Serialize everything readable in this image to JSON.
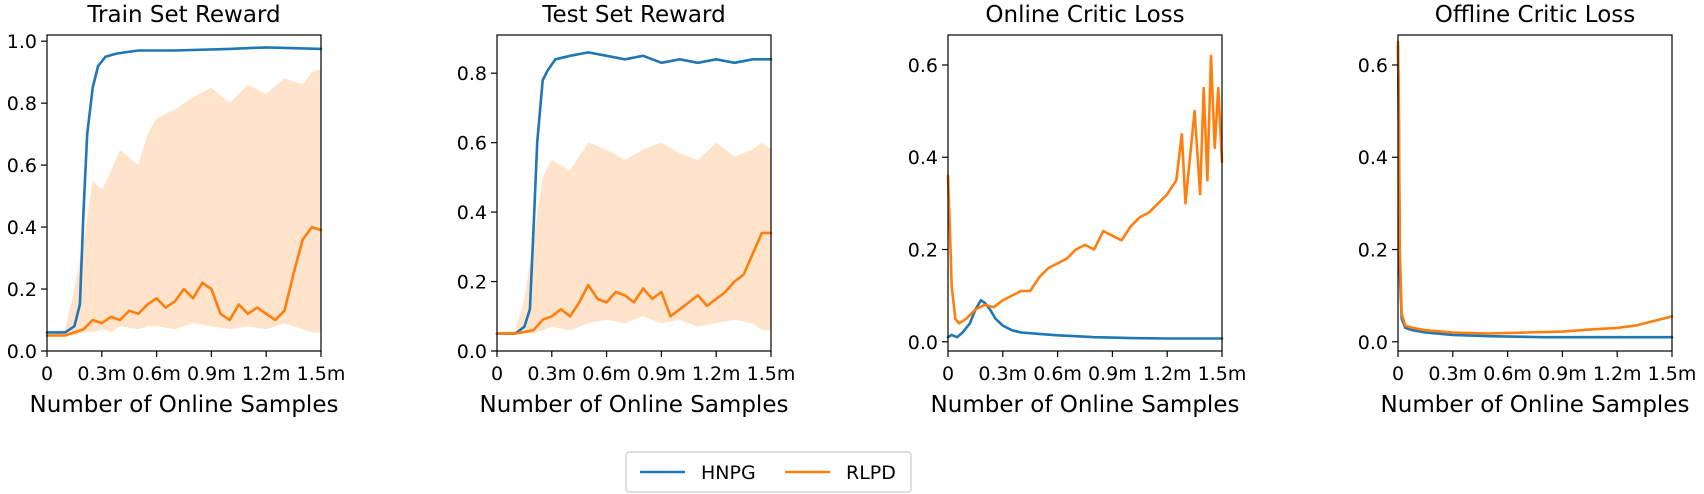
{
  "legend": {
    "items": [
      {
        "name": "HNPG",
        "color": "#1f77b4"
      },
      {
        "name": "RLPD",
        "color": "#ff7f0e"
      }
    ],
    "placement": "bottom-center"
  },
  "chart_data": [
    {
      "type": "line",
      "title": "Train Set Reward",
      "xlabel": "Number of Online Samples",
      "ylabel": "",
      "xlim": [
        0,
        1.5
      ],
      "ylim": [
        0,
        1.02
      ],
      "xticks": [
        0,
        0.3,
        0.6,
        0.9,
        1.2,
        1.5
      ],
      "xtick_labels": [
        "0",
        "0.3m",
        "0.6m",
        "0.9m",
        "1.2m",
        "1.5m"
      ],
      "yticks": [
        0,
        0.2,
        0.4,
        0.6,
        0.8,
        1.0
      ],
      "ytick_labels": [
        "0.0",
        "0.2",
        "0.4",
        "0.6",
        "0.8",
        "1.0"
      ],
      "grid": false,
      "series": [
        {
          "name": "HNPG",
          "color": "#1f77b4",
          "x": [
            0,
            0.1,
            0.15,
            0.18,
            0.2,
            0.22,
            0.25,
            0.28,
            0.32,
            0.38,
            0.5,
            0.7,
            1.0,
            1.2,
            1.5
          ],
          "y": [
            0.06,
            0.06,
            0.08,
            0.15,
            0.45,
            0.7,
            0.85,
            0.92,
            0.95,
            0.96,
            0.97,
            0.97,
            0.975,
            0.98,
            0.975
          ]
        },
        {
          "name": "RLPD",
          "color": "#ff7f0e",
          "x": [
            0,
            0.1,
            0.2,
            0.25,
            0.3,
            0.35,
            0.4,
            0.45,
            0.5,
            0.55,
            0.6,
            0.65,
            0.7,
            0.75,
            0.8,
            0.85,
            0.9,
            0.95,
            1.0,
            1.05,
            1.1,
            1.15,
            1.2,
            1.25,
            1.3,
            1.35,
            1.4,
            1.45,
            1.5
          ],
          "y": [
            0.05,
            0.05,
            0.07,
            0.1,
            0.09,
            0.11,
            0.1,
            0.13,
            0.12,
            0.15,
            0.17,
            0.14,
            0.16,
            0.2,
            0.17,
            0.22,
            0.2,
            0.12,
            0.1,
            0.15,
            0.12,
            0.14,
            0.12,
            0.1,
            0.13,
            0.25,
            0.36,
            0.4,
            0.39
          ]
        }
      ],
      "bands": [
        {
          "series": "RLPD",
          "color": "#ff7f0e",
          "x": [
            0,
            0.1,
            0.15,
            0.2,
            0.25,
            0.3,
            0.35,
            0.4,
            0.5,
            0.55,
            0.6,
            0.7,
            0.8,
            0.9,
            1.0,
            1.1,
            1.2,
            1.3,
            1.4,
            1.45,
            1.5
          ],
          "upper": [
            0.06,
            0.07,
            0.2,
            0.35,
            0.55,
            0.52,
            0.58,
            0.65,
            0.6,
            0.7,
            0.75,
            0.78,
            0.82,
            0.85,
            0.8,
            0.86,
            0.83,
            0.88,
            0.86,
            0.9,
            0.91
          ],
          "lower": [
            0.05,
            0.05,
            0.05,
            0.06,
            0.06,
            0.07,
            0.06,
            0.08,
            0.07,
            0.08,
            0.08,
            0.07,
            0.09,
            0.08,
            0.07,
            0.08,
            0.07,
            0.09,
            0.07,
            0.06,
            0.06
          ]
        }
      ]
    },
    {
      "type": "line",
      "title": "Test Set Reward",
      "xlabel": "Number of Online Samples",
      "ylabel": "",
      "xlim": [
        0,
        1.5
      ],
      "ylim": [
        0,
        0.91
      ],
      "xticks": [
        0,
        0.3,
        0.6,
        0.9,
        1.2,
        1.5
      ],
      "xtick_labels": [
        "0",
        "0.3m",
        "0.6m",
        "0.9m",
        "1.2m",
        "1.5m"
      ],
      "yticks": [
        0,
        0.2,
        0.4,
        0.6,
        0.8
      ],
      "ytick_labels": [
        "0.0",
        "0.2",
        "0.4",
        "0.6",
        "0.8"
      ],
      "grid": false,
      "series": [
        {
          "name": "HNPG",
          "color": "#1f77b4",
          "x": [
            0,
            0.1,
            0.15,
            0.18,
            0.2,
            0.22,
            0.25,
            0.28,
            0.32,
            0.4,
            0.5,
            0.6,
            0.7,
            0.8,
            0.9,
            1.0,
            1.1,
            1.2,
            1.3,
            1.4,
            1.5
          ],
          "y": [
            0.05,
            0.05,
            0.07,
            0.12,
            0.35,
            0.6,
            0.78,
            0.81,
            0.84,
            0.85,
            0.86,
            0.85,
            0.84,
            0.85,
            0.83,
            0.84,
            0.83,
            0.84,
            0.83,
            0.84,
            0.84
          ]
        },
        {
          "name": "RLPD",
          "color": "#ff7f0e",
          "x": [
            0,
            0.1,
            0.2,
            0.25,
            0.3,
            0.35,
            0.4,
            0.45,
            0.5,
            0.55,
            0.6,
            0.65,
            0.7,
            0.75,
            0.8,
            0.85,
            0.9,
            0.95,
            1.0,
            1.05,
            1.1,
            1.15,
            1.2,
            1.25,
            1.3,
            1.35,
            1.4,
            1.45,
            1.5
          ],
          "y": [
            0.05,
            0.05,
            0.06,
            0.09,
            0.1,
            0.12,
            0.1,
            0.14,
            0.19,
            0.15,
            0.14,
            0.17,
            0.16,
            0.14,
            0.18,
            0.15,
            0.17,
            0.1,
            0.12,
            0.14,
            0.16,
            0.13,
            0.15,
            0.17,
            0.2,
            0.22,
            0.28,
            0.34,
            0.34
          ]
        }
      ],
      "bands": [
        {
          "series": "RLPD",
          "color": "#ff7f0e",
          "x": [
            0,
            0.1,
            0.15,
            0.2,
            0.25,
            0.3,
            0.4,
            0.5,
            0.6,
            0.7,
            0.8,
            0.9,
            1.0,
            1.1,
            1.2,
            1.3,
            1.4,
            1.45,
            1.5
          ],
          "upper": [
            0.05,
            0.06,
            0.15,
            0.32,
            0.5,
            0.55,
            0.52,
            0.6,
            0.58,
            0.55,
            0.58,
            0.6,
            0.57,
            0.55,
            0.6,
            0.56,
            0.58,
            0.6,
            0.58
          ],
          "lower": [
            0.05,
            0.05,
            0.05,
            0.05,
            0.06,
            0.07,
            0.06,
            0.08,
            0.09,
            0.08,
            0.1,
            0.08,
            0.09,
            0.07,
            0.08,
            0.09,
            0.08,
            0.06,
            0.06
          ]
        }
      ]
    },
    {
      "type": "line",
      "title": "Online Critic Loss",
      "xlabel": "Number of Online Samples",
      "ylabel": "",
      "xlim": [
        0,
        1.5
      ],
      "ylim": [
        -0.02,
        0.665
      ],
      "xticks": [
        0,
        0.3,
        0.6,
        0.9,
        1.2,
        1.5
      ],
      "xtick_labels": [
        "0",
        "0.3m",
        "0.6m",
        "0.9m",
        "1.2m",
        "1.5m"
      ],
      "yticks": [
        0,
        0.2,
        0.4,
        0.6
      ],
      "ytick_labels": [
        "0.0",
        "0.2",
        "0.4",
        "0.6"
      ],
      "grid": false,
      "series": [
        {
          "name": "HNPG",
          "color": "#1f77b4",
          "x": [
            0,
            0.02,
            0.05,
            0.08,
            0.12,
            0.15,
            0.18,
            0.2,
            0.23,
            0.26,
            0.3,
            0.35,
            0.4,
            0.5,
            0.6,
            0.7,
            0.8,
            0.9,
            1.0,
            1.2,
            1.5
          ],
          "y": [
            0.01,
            0.015,
            0.01,
            0.02,
            0.04,
            0.07,
            0.09,
            0.085,
            0.07,
            0.05,
            0.035,
            0.025,
            0.02,
            0.017,
            0.014,
            0.012,
            0.01,
            0.009,
            0.008,
            0.007,
            0.007
          ]
        },
        {
          "name": "RLPD",
          "color": "#ff7f0e",
          "x": [
            0,
            0.01,
            0.02,
            0.04,
            0.06,
            0.1,
            0.15,
            0.2,
            0.25,
            0.3,
            0.35,
            0.4,
            0.45,
            0.5,
            0.55,
            0.6,
            0.65,
            0.7,
            0.75,
            0.8,
            0.85,
            0.9,
            0.95,
            1.0,
            1.05,
            1.1,
            1.15,
            1.2,
            1.25,
            1.28,
            1.3,
            1.32,
            1.35,
            1.38,
            1.4,
            1.42,
            1.44,
            1.46,
            1.48,
            1.5
          ],
          "y": [
            0.36,
            0.25,
            0.12,
            0.05,
            0.04,
            0.05,
            0.07,
            0.08,
            0.075,
            0.09,
            0.1,
            0.11,
            0.11,
            0.14,
            0.16,
            0.17,
            0.18,
            0.2,
            0.21,
            0.2,
            0.24,
            0.23,
            0.22,
            0.25,
            0.27,
            0.28,
            0.3,
            0.32,
            0.35,
            0.45,
            0.3,
            0.38,
            0.5,
            0.32,
            0.55,
            0.35,
            0.62,
            0.42,
            0.55,
            0.39
          ]
        }
      ]
    },
    {
      "type": "line",
      "title": "Offline Critic Loss",
      "xlabel": "Number of Online Samples",
      "ylabel": "",
      "xlim": [
        0,
        1.5
      ],
      "ylim": [
        -0.02,
        0.665
      ],
      "xticks": [
        0,
        0.3,
        0.6,
        0.9,
        1.2,
        1.5
      ],
      "xtick_labels": [
        "0",
        "0.3m",
        "0.6m",
        "0.9m",
        "1.2m",
        "1.5m"
      ],
      "yticks": [
        0,
        0.2,
        0.4,
        0.6
      ],
      "ytick_labels": [
        "0.0",
        "0.2",
        "0.4",
        "0.6"
      ],
      "grid": false,
      "series": [
        {
          "name": "HNPG",
          "color": "#1f77b4",
          "x": [
            0,
            0.005,
            0.01,
            0.02,
            0.04,
            0.08,
            0.15,
            0.3,
            0.5,
            0.8,
            1.0,
            1.2,
            1.5
          ],
          "y": [
            0.64,
            0.45,
            0.15,
            0.05,
            0.03,
            0.025,
            0.02,
            0.015,
            0.012,
            0.01,
            0.01,
            0.01,
            0.01
          ]
        },
        {
          "name": "RLPD",
          "color": "#ff7f0e",
          "x": [
            0,
            0.005,
            0.01,
            0.02,
            0.04,
            0.08,
            0.15,
            0.3,
            0.5,
            0.7,
            0.9,
            1.0,
            1.1,
            1.2,
            1.3,
            1.4,
            1.45,
            1.5
          ],
          "y": [
            0.65,
            0.5,
            0.2,
            0.06,
            0.035,
            0.03,
            0.025,
            0.02,
            0.018,
            0.02,
            0.022,
            0.025,
            0.028,
            0.03,
            0.035,
            0.045,
            0.05,
            0.055
          ]
        }
      ]
    }
  ]
}
